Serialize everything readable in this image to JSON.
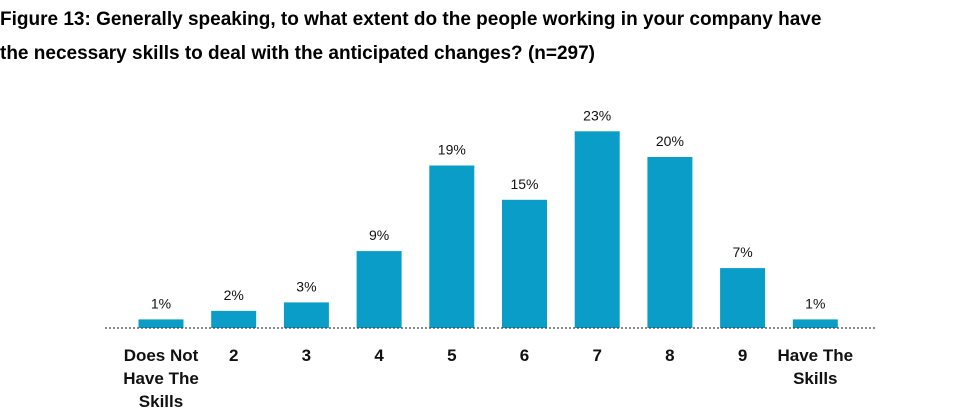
{
  "title_lines": [
    "Figure 13: Generally speaking, to what extent do the people working in your company have",
    "the necessary skills to deal with the anticipated changes? (n=297)"
  ],
  "chart_data": {
    "type": "bar",
    "title": "Figure 13: Generally speaking, to what extent do the people working in your company have the necessary skills to deal with the anticipated changes? (n=297)",
    "categories": [
      [
        "Does Not",
        "Have The",
        "Skills"
      ],
      [
        "2"
      ],
      [
        "3"
      ],
      [
        "4"
      ],
      [
        "5"
      ],
      [
        "6"
      ],
      [
        "7"
      ],
      [
        "8"
      ],
      [
        "9"
      ],
      [
        "Have The",
        "Skills"
      ]
    ],
    "values": [
      1,
      2,
      3,
      9,
      19,
      15,
      23,
      20,
      7,
      1
    ],
    "data_labels": [
      "1%",
      "2%",
      "3%",
      "9%",
      "19%",
      "15%",
      "23%",
      "20%",
      "7%",
      "1%"
    ],
    "unit": "%",
    "ylim": [
      0,
      25
    ],
    "grid": false,
    "legend": "none",
    "baseline_style": "dotted",
    "bar_color": "#0a9dc7",
    "baseline_color": "#444444",
    "text_color": "#111111"
  }
}
